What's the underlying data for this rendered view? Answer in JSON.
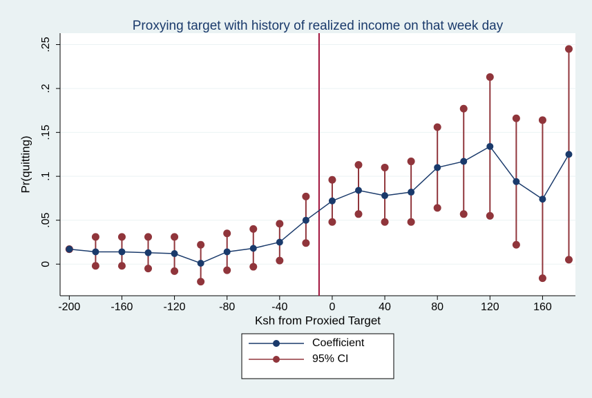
{
  "chart_data": {
    "type": "coefplot",
    "title": "Proxying target with history of realized income on that week day",
    "x_label": "Ksh from Proxied Target",
    "y_label": "Pr(quitting)",
    "x": [
      -200,
      -180,
      -160,
      -140,
      -120,
      -100,
      -80,
      -60,
      -40,
      -20,
      0,
      20,
      40,
      60,
      80,
      100,
      120,
      140,
      160,
      180
    ],
    "series": [
      {
        "name": "Coefficient",
        "color": "#1a3a6b",
        "values": [
          0.017,
          0.014,
          0.014,
          0.013,
          0.012,
          0.001,
          0.014,
          0.018,
          0.025,
          0.05,
          0.072,
          0.084,
          0.078,
          0.082,
          0.11,
          0.117,
          0.134,
          0.094,
          0.074,
          0.125
        ]
      },
      {
        "name": "95% CI",
        "color": "#90353b",
        "upper": [
          0.017,
          0.031,
          0.031,
          0.031,
          0.031,
          0.022,
          0.035,
          0.04,
          0.046,
          0.077,
          0.096,
          0.113,
          0.11,
          0.117,
          0.156,
          0.177,
          0.213,
          0.166,
          0.164,
          0.245
        ],
        "lower": [
          0.017,
          -0.002,
          -0.002,
          -0.005,
          -0.008,
          -0.02,
          -0.007,
          -0.003,
          0.004,
          0.024,
          0.048,
          0.057,
          0.048,
          0.048,
          0.064,
          0.057,
          0.055,
          0.022,
          -0.016,
          0.005
        ]
      }
    ],
    "vline": -10,
    "vline_color": "#a0103a",
    "xlim": [
      -207,
      185
    ],
    "ylim": [
      -0.036,
      0.263
    ],
    "xticks": [
      -200,
      -160,
      -120,
      -80,
      -40,
      0,
      40,
      80,
      120,
      160
    ],
    "yticks": [
      0,
      {
        "value": 0.05,
        "label": ".05"
      },
      {
        "value": 0.1,
        "label": ".1"
      },
      {
        "value": 0.15,
        "label": ".15"
      },
      {
        "value": 0.2,
        "label": ".2"
      },
      {
        "value": 0.25,
        "label": ".25"
      }
    ],
    "grid": true
  }
}
